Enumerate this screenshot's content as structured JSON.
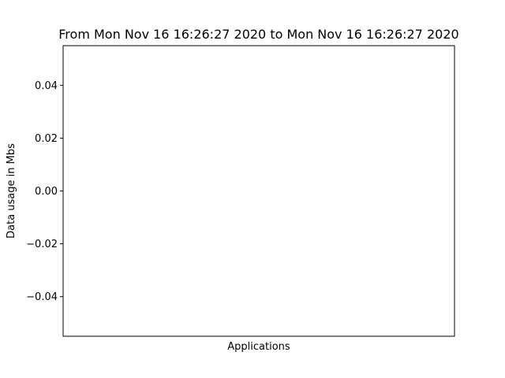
{
  "chart_data": {
    "type": "bar",
    "title": "From Mon Nov 16 16:26:27 2020 to Mon Nov 16 16:26:27 2020",
    "xlabel": "Applications",
    "ylabel": "Data usage in Mbs",
    "categories": [],
    "values": [],
    "ylim": [
      -0.055,
      0.055
    ],
    "yticks": [
      -0.04,
      -0.02,
      0.0,
      0.02,
      0.04
    ],
    "ytick_labels": [
      "−0.04",
      "−0.02",
      "0.00",
      "0.02",
      "0.04"
    ],
    "grid": false,
    "colors": {
      "axes": "#000000",
      "background": "#ffffff",
      "bars": "#1f77b4"
    }
  }
}
